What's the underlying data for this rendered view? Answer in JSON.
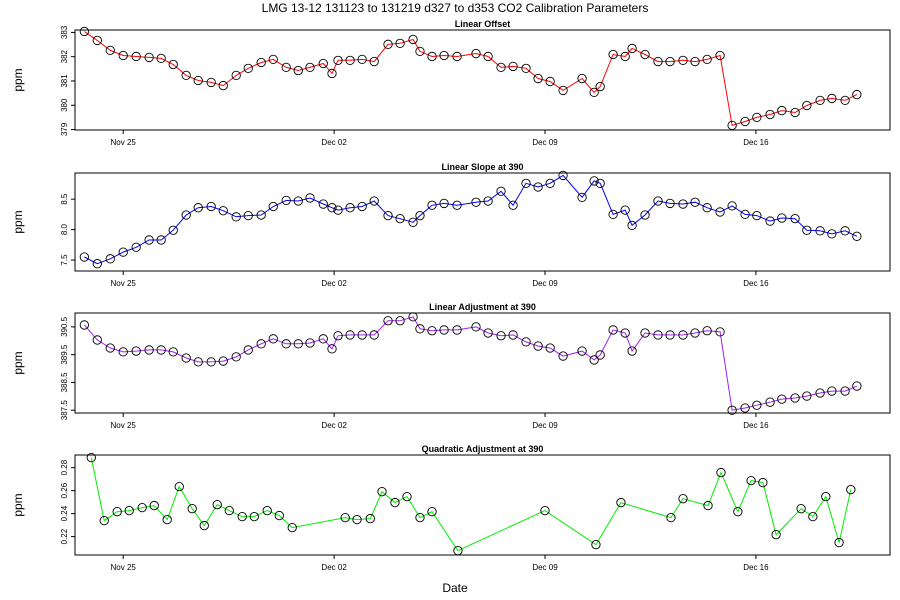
{
  "title": "LMG   13-12    131123 to 131219    d327 to d353    CO2 Calibration Parameters",
  "xlabel": "Date",
  "chart_data": [
    {
      "type": "line",
      "title": "Linear Offset",
      "ylabel": "ppm",
      "color": "#ff0000",
      "marker": "circle",
      "xlim": [
        327.4,
        354.45
      ],
      "ylim": [
        378.98,
        383.1
      ],
      "xticks": [
        {
          "value": 329,
          "label": "Nov 25"
        },
        {
          "value": 336,
          "label": "Dec 02"
        },
        {
          "value": 343,
          "label": "Dec 09"
        },
        {
          "value": 350,
          "label": "Dec 16"
        }
      ],
      "yticks": [
        379,
        380,
        381,
        382,
        383
      ],
      "x": [
        327.71,
        328.14,
        328.57,
        329.0,
        329.43,
        329.86,
        330.26,
        330.66,
        331.09,
        331.49,
        331.92,
        332.32,
        332.75,
        333.15,
        333.58,
        333.98,
        334.41,
        334.81,
        335.2,
        335.64,
        335.93,
        336.13,
        336.53,
        336.93,
        337.33,
        337.79,
        338.19,
        338.62,
        338.85,
        339.25,
        339.65,
        340.08,
        340.71,
        341.11,
        341.54,
        341.94,
        342.37,
        342.77,
        343.17,
        343.6,
        344.23,
        344.63,
        344.83,
        345.26,
        345.66,
        345.89,
        346.32,
        346.75,
        347.15,
        347.58,
        347.98,
        348.38,
        348.81,
        349.21,
        349.64,
        350.03,
        350.47,
        350.86,
        351.3,
        351.69,
        352.13,
        352.52,
        352.96,
        353.35
      ],
      "values": [
        383.04,
        382.67,
        382.26,
        382.05,
        382.01,
        381.97,
        381.93,
        381.68,
        381.23,
        381.02,
        380.94,
        380.81,
        381.23,
        381.52,
        381.76,
        381.89,
        381.56,
        381.43,
        381.56,
        381.72,
        381.31,
        381.85,
        381.85,
        381.89,
        381.8,
        382.51,
        382.55,
        382.71,
        382.22,
        382.01,
        382.05,
        382.01,
        382.13,
        382.01,
        381.56,
        381.6,
        381.52,
        381.1,
        380.98,
        380.61,
        381.1,
        380.53,
        380.77,
        382.09,
        382.01,
        382.34,
        382.09,
        381.8,
        381.8,
        381.85,
        381.8,
        381.89,
        382.05,
        379.17,
        379.33,
        379.5,
        379.62,
        379.78,
        379.7,
        379.99,
        380.2,
        380.28,
        380.2,
        380.44
      ]
    },
    {
      "type": "line",
      "title": "Linear Slope at 390",
      "ylabel": "ppm",
      "color": "#0000ff",
      "marker": "circle",
      "xlim": [
        327.4,
        354.45
      ],
      "ylim": [
        7.32,
        8.93
      ],
      "xticks": [
        {
          "value": 329,
          "label": "Nov 25"
        },
        {
          "value": 336,
          "label": "Dec 02"
        },
        {
          "value": 343,
          "label": "Dec 09"
        },
        {
          "value": 350,
          "label": "Dec 16"
        }
      ],
      "yticks": [
        7.5,
        {
          "value": 8,
          "label": "8.0"
        },
        8.5
      ],
      "x": [
        327.71,
        328.14,
        328.57,
        329.0,
        329.43,
        329.86,
        330.26,
        330.66,
        331.09,
        331.49,
        331.92,
        332.32,
        332.75,
        333.15,
        333.58,
        333.98,
        334.41,
        334.81,
        335.2,
        335.64,
        335.93,
        336.13,
        336.53,
        336.93,
        337.33,
        337.79,
        338.19,
        338.62,
        338.85,
        339.25,
        339.65,
        340.08,
        340.71,
        341.11,
        341.54,
        341.94,
        342.37,
        342.77,
        343.17,
        343.6,
        344.23,
        344.63,
        344.83,
        345.26,
        345.66,
        345.89,
        346.32,
        346.75,
        347.15,
        347.58,
        347.98,
        348.38,
        348.81,
        349.21,
        349.64,
        350.03,
        350.47,
        350.86,
        351.3,
        351.69,
        352.13,
        352.52,
        352.96,
        353.35
      ],
      "values": [
        7.55,
        7.44,
        7.52,
        7.63,
        7.71,
        7.83,
        7.83,
        7.99,
        8.24,
        8.36,
        8.38,
        8.31,
        8.21,
        8.23,
        8.24,
        8.38,
        8.48,
        8.47,
        8.52,
        8.42,
        8.36,
        8.32,
        8.36,
        8.38,
        8.47,
        8.23,
        8.18,
        8.12,
        8.23,
        8.4,
        8.43,
        8.4,
        8.45,
        8.47,
        8.63,
        8.4,
        8.76,
        8.7,
        8.76,
        8.89,
        8.53,
        8.8,
        8.76,
        8.25,
        8.32,
        8.07,
        8.24,
        8.47,
        8.43,
        8.42,
        8.45,
        8.36,
        8.29,
        8.39,
        8.25,
        8.23,
        8.14,
        8.19,
        8.18,
        7.99,
        7.98,
        7.93,
        7.98,
        7.89
      ]
    },
    {
      "type": "line",
      "title": "Linear Adjustment at 390",
      "ylabel": "ppm",
      "color": "#a020f0",
      "marker": "circle",
      "xlim": [
        327.4,
        354.45
      ],
      "ylim": [
        387.4,
        391.0
      ],
      "xticks": [
        {
          "value": 329,
          "label": "Nov 25"
        },
        {
          "value": 336,
          "label": "Dec 02"
        },
        {
          "value": 343,
          "label": "Dec 09"
        },
        {
          "value": 350,
          "label": "Dec 16"
        }
      ],
      "yticks": [
        387.5,
        388.5,
        389.5,
        390.5
      ],
      "x": [
        327.71,
        328.14,
        328.57,
        329.0,
        329.43,
        329.86,
        330.26,
        330.66,
        331.09,
        331.49,
        331.92,
        332.32,
        332.75,
        333.15,
        333.58,
        333.98,
        334.41,
        334.81,
        335.2,
        335.64,
        335.93,
        336.13,
        336.53,
        336.93,
        337.33,
        337.79,
        338.19,
        338.62,
        338.85,
        339.25,
        339.65,
        340.08,
        340.71,
        341.11,
        341.54,
        341.94,
        342.37,
        342.77,
        343.17,
        343.6,
        344.23,
        344.63,
        344.83,
        345.26,
        345.66,
        345.89,
        346.32,
        346.75,
        347.15,
        347.58,
        347.98,
        348.38,
        348.81,
        349.21,
        349.64,
        350.03,
        350.47,
        350.86,
        351.3,
        351.69,
        352.13,
        352.52,
        352.96,
        353.35
      ],
      "values": [
        390.57,
        390.03,
        389.74,
        389.6,
        389.63,
        389.67,
        389.67,
        389.6,
        389.38,
        389.24,
        389.24,
        389.27,
        389.42,
        389.67,
        389.89,
        390.07,
        389.89,
        389.89,
        389.92,
        390.07,
        389.71,
        390.18,
        390.21,
        390.21,
        390.21,
        390.72,
        390.72,
        390.86,
        390.43,
        390.36,
        390.39,
        390.39,
        390.5,
        390.28,
        390.18,
        390.21,
        389.96,
        389.81,
        389.74,
        389.45,
        389.63,
        389.31,
        389.49,
        390.39,
        390.28,
        389.63,
        390.28,
        390.21,
        390.21,
        390.21,
        390.28,
        390.36,
        390.32,
        387.5,
        387.58,
        387.68,
        387.79,
        387.9,
        387.94,
        388.01,
        388.12,
        388.19,
        388.19,
        388.37
      ]
    },
    {
      "type": "line",
      "title": "Quadratic Adjustment at 390",
      "ylabel": "ppm",
      "color": "#00ee00",
      "marker": "circle",
      "xlim": [
        327.4,
        354.45
      ],
      "ylim": [
        0.204,
        0.291
      ],
      "xticks": [
        {
          "value": 329,
          "label": "Nov 25"
        },
        {
          "value": 336,
          "label": "Dec 02"
        },
        {
          "value": 343,
          "label": "Dec 09"
        },
        {
          "value": 350,
          "label": "Dec 16"
        }
      ],
      "yticks": [
        0.22,
        0.24,
        0.26,
        0.28
      ],
      "x": [
        327.94,
        328.37,
        328.8,
        329.2,
        329.63,
        330.03,
        330.46,
        330.86,
        331.29,
        331.69,
        332.12,
        332.52,
        332.95,
        333.35,
        333.78,
        334.18,
        334.61,
        336.37,
        336.76,
        337.2,
        337.59,
        338.02,
        338.42,
        338.85,
        339.25,
        340.11,
        343.0,
        344.69,
        345.52,
        347.18,
        347.58,
        348.41,
        348.84,
        349.4,
        349.84,
        350.23,
        350.67,
        351.5,
        351.89,
        352.32,
        352.76,
        353.15
      ],
      "values": [
        0.2887,
        0.2339,
        0.2417,
        0.2426,
        0.2452,
        0.247,
        0.2348,
        0.2635,
        0.2443,
        0.2296,
        0.2478,
        0.2426,
        0.2374,
        0.2374,
        0.2426,
        0.2383,
        0.2278,
        0.2365,
        0.2348,
        0.2357,
        0.2591,
        0.2496,
        0.2548,
        0.2365,
        0.2417,
        0.2078,
        0.2426,
        0.213,
        0.2496,
        0.2365,
        0.253,
        0.247,
        0.2757,
        0.2417,
        0.2687,
        0.267,
        0.2217,
        0.2443,
        0.2374,
        0.2548,
        0.2148,
        0.2609
      ]
    }
  ]
}
